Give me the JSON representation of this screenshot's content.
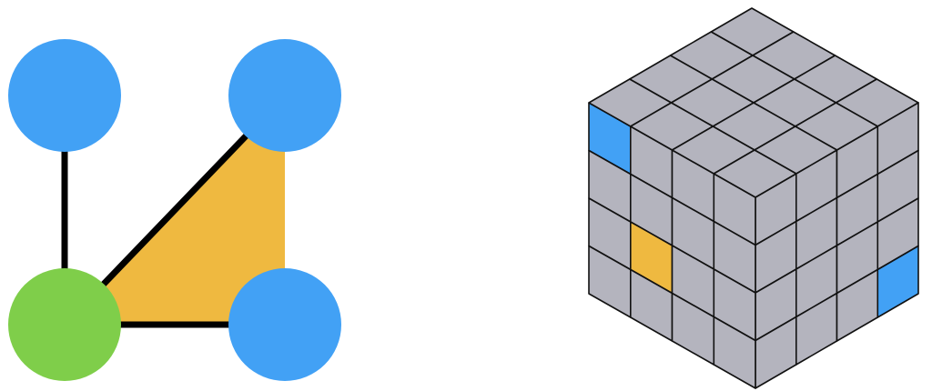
{
  "colors": {
    "background": "#ffffff",
    "node_blue": "#42a1f5",
    "node_green": "#7fce4a",
    "triangle_fill": "#efb940",
    "edge": "#000000",
    "cube_face": "#b4b4be",
    "cube_highlight_blue": "#42a1f5",
    "cube_highlight_orange": "#efb940",
    "cube_outline": "#111111"
  },
  "graph": {
    "nodes": [
      {
        "id": "node-top-left",
        "color": "blue"
      },
      {
        "id": "node-top-right",
        "color": "blue"
      },
      {
        "id": "node-bottom-left",
        "color": "green"
      },
      {
        "id": "node-bottom-right",
        "color": "blue"
      }
    ],
    "edges": [
      {
        "from": "node-top-left",
        "to": "node-bottom-left"
      },
      {
        "from": "node-bottom-left",
        "to": "node-top-right"
      },
      {
        "from": "node-bottom-left",
        "to": "node-bottom-right"
      }
    ],
    "filled_triangle": [
      "node-bottom-left",
      "node-top-right",
      "node-bottom-right"
    ]
  },
  "cube": {
    "grid_size": 4,
    "highlights": [
      {
        "face": "front",
        "cell": [
          0,
          0
        ],
        "color": "blue"
      },
      {
        "face": "front",
        "cell": [
          1,
          2
        ],
        "color": "orange"
      },
      {
        "face": "right",
        "cell": [
          3,
          3
        ],
        "color": "blue"
      }
    ]
  }
}
